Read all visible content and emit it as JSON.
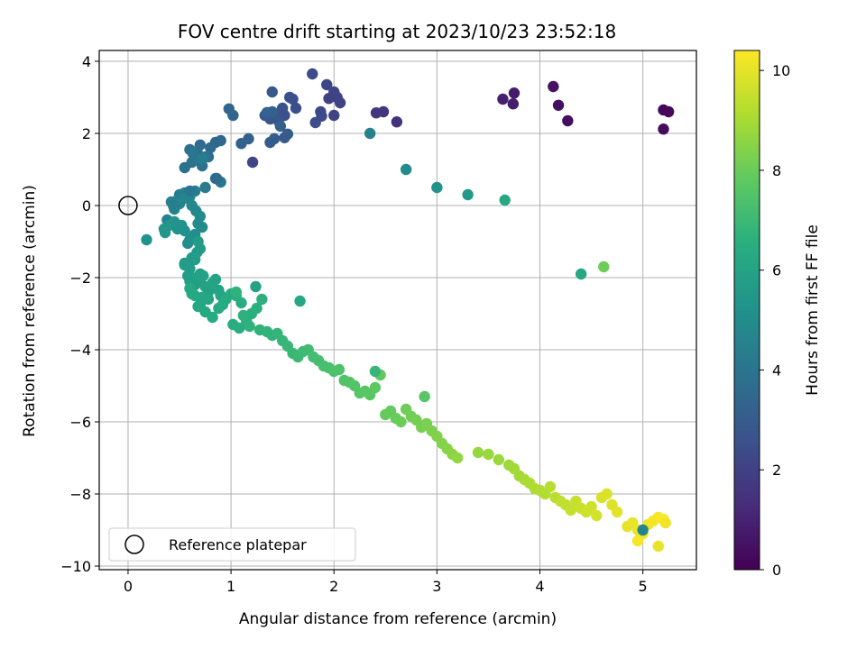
{
  "chart_data": {
    "type": "scatter",
    "title": "FOV centre drift starting at 2023/10/23 23:52:18",
    "xlabel": "Angular distance from reference (arcmin)",
    "ylabel": "Rotation from reference (arcmin)",
    "xlim": [
      -0.28,
      5.52
    ],
    "ylim": [
      -10.1,
      4.3
    ],
    "xticks": [
      0,
      1,
      2,
      3,
      4,
      5
    ],
    "yticks": [
      -10,
      -8,
      -6,
      -4,
      -2,
      0,
      2,
      4
    ],
    "grid": true,
    "colormap": "viridis",
    "colorbar": {
      "label": "Hours from first FF file",
      "range": [
        0,
        10.4
      ],
      "ticks": [
        0,
        2,
        4,
        6,
        8,
        10
      ]
    },
    "reference_point": {
      "x": 0,
      "y": 0,
      "label": "Reference platepar",
      "marker": "open-circle"
    },
    "legend": {
      "position": "lower-left",
      "entries": [
        "Reference platepar"
      ]
    },
    "series": [
      {
        "x": [
          5.2,
          5.25,
          5.2,
          4.27,
          4.18,
          4.13,
          3.75,
          3.74,
          3.64,
          2.61,
          2.48,
          2.41,
          1.95,
          2.03,
          2.06,
          2.0,
          1.93,
          1.87,
          1.88,
          1.79,
          1.82,
          1.63,
          1.6,
          1.52,
          1.57,
          1.5,
          1.43,
          1.46,
          1.38,
          1.33,
          1.4,
          1.38,
          1.52,
          1.55,
          1.42,
          1.48,
          1.4,
          1.35,
          1.17,
          1.1,
          1.02,
          0.98,
          0.9,
          0.85,
          0.8,
          0.78,
          0.7,
          0.67,
          0.6,
          0.55,
          0.62,
          0.72,
          0.75,
          0.68,
          0.63,
          0.9,
          0.85,
          0.75,
          0.65,
          0.55,
          0.5,
          0.48,
          0.42,
          0.38,
          0.45,
          0.5,
          0.55,
          0.6,
          0.62,
          0.66,
          0.7,
          0.68,
          0.72,
          0.65,
          0.6,
          0.58,
          0.55,
          0.52,
          0.48,
          0.45,
          0.4,
          0.36,
          0.35,
          0.55,
          0.62,
          0.67,
          0.7,
          0.68,
          0.65,
          0.6,
          0.55,
          0.58,
          0.6,
          0.62,
          0.65,
          0.68,
          0.7,
          0.73,
          0.75,
          0.78,
          0.8,
          0.82,
          0.85,
          0.88,
          0.9,
          0.78,
          0.72,
          0.7,
          0.68,
          0.65,
          0.62,
          0.6,
          0.75,
          0.82,
          0.88,
          0.92,
          0.95,
          1.0,
          1.05,
          1.1,
          1.02,
          1.08,
          1.15,
          1.2,
          1.25,
          1.3,
          1.12,
          1.18,
          1.05,
          1.28,
          1.35,
          1.4,
          1.45,
          1.5,
          1.55,
          1.6,
          1.65,
          1.7,
          1.75,
          1.8,
          1.85,
          1.9,
          1.95,
          2.0,
          2.05,
          2.1,
          2.15,
          2.2,
          2.25,
          2.3,
          2.35,
          2.4,
          2.45,
          2.5,
          2.55,
          2.6,
          2.65,
          2.7,
          2.75,
          2.8,
          2.85,
          2.9,
          2.95,
          3.0,
          3.05,
          3.1,
          3.15,
          3.2,
          3.4,
          3.5,
          3.6,
          3.7,
          3.75,
          3.8,
          3.85,
          3.9,
          3.95,
          4.0,
          4.05,
          4.1,
          4.15,
          4.2,
          4.25,
          4.3,
          4.35,
          4.4,
          4.45,
          4.5,
          4.55,
          4.6,
          4.65,
          4.7,
          4.75,
          4.85,
          4.9,
          4.95,
          5.0,
          5.05,
          5.1,
          5.15,
          5.2,
          5.22,
          4.95,
          5.15,
          5.0,
          0.18,
          0.44,
          0.6,
          0.72,
          0.86,
          1.21,
          2.0,
          2.35,
          2.7,
          3.0,
          3.3,
          3.66,
          4.4,
          4.62,
          2.88,
          2.4,
          1.67,
          1.24,
          0.95
        ],
        "y": [
          2.65,
          2.6,
          2.12,
          2.35,
          2.78,
          3.3,
          3.12,
          2.82,
          2.95,
          2.32,
          2.6,
          2.57,
          2.97,
          3.0,
          2.85,
          3.15,
          3.35,
          2.6,
          2.48,
          3.65,
          2.3,
          2.7,
          2.95,
          2.5,
          3.0,
          2.7,
          2.55,
          2.35,
          2.4,
          2.5,
          3.15,
          1.75,
          1.88,
          1.98,
          1.85,
          2.2,
          2.6,
          2.58,
          1.85,
          1.72,
          2.5,
          2.68,
          1.8,
          1.75,
          1.6,
          1.35,
          1.68,
          1.5,
          1.55,
          1.05,
          1.2,
          1.1,
          1.35,
          1.3,
          1.45,
          0.65,
          0.75,
          0.5,
          0.4,
          0.35,
          0.3,
          0.15,
          0.1,
          -0.4,
          -0.1,
          0.05,
          0.2,
          0.25,
          0.0,
          -0.15,
          -0.3,
          -0.5,
          -0.6,
          -0.8,
          -0.95,
          -1.05,
          -0.7,
          -0.55,
          -0.65,
          -0.45,
          -0.55,
          -0.75,
          -0.65,
          -1.6,
          -1.45,
          -1.3,
          -1.2,
          -1.0,
          -1.5,
          -1.75,
          -1.65,
          -1.95,
          -2.1,
          -2.0,
          -2.2,
          -2.05,
          -1.9,
          -1.95,
          -2.25,
          -2.4,
          -2.3,
          -2.15,
          -2.05,
          -2.35,
          -2.5,
          -2.6,
          -2.55,
          -2.75,
          -2.8,
          -2.5,
          -2.45,
          -2.3,
          -2.95,
          -3.1,
          -2.85,
          -2.75,
          -2.6,
          -2.45,
          -2.5,
          -2.7,
          -3.3,
          -3.4,
          -3.2,
          -3.0,
          -2.85,
          -2.6,
          -3.05,
          -3.35,
          -2.4,
          -3.45,
          -3.5,
          -3.6,
          -3.55,
          -3.75,
          -3.9,
          -4.1,
          -4.2,
          -4.05,
          -4.0,
          -4.2,
          -4.3,
          -4.45,
          -4.5,
          -4.6,
          -4.55,
          -4.85,
          -4.9,
          -5.0,
          -5.2,
          -5.15,
          -5.25,
          -5.05,
          -4.7,
          -5.8,
          -5.7,
          -5.9,
          -6.0,
          -5.65,
          -5.85,
          -5.95,
          -6.15,
          -6.05,
          -6.25,
          -6.4,
          -6.6,
          -6.75,
          -6.9,
          -7.0,
          -6.85,
          -6.9,
          -7.05,
          -7.2,
          -7.3,
          -7.5,
          -7.6,
          -7.7,
          -7.85,
          -7.9,
          -8.0,
          -7.8,
          -8.1,
          -8.2,
          -8.3,
          -8.45,
          -8.2,
          -8.4,
          -8.5,
          -8.35,
          -8.6,
          -8.1,
          -8.0,
          -8.3,
          -8.5,
          -8.9,
          -8.8,
          -9.0,
          -9.1,
          -8.85,
          -8.75,
          -8.65,
          -8.7,
          -8.8,
          -9.3,
          -9.45,
          -9.0,
          -0.95,
          0.0,
          0.4,
          1.3,
          0.75,
          1.2,
          2.5,
          2.0,
          1.0,
          0.5,
          0.3,
          0.15,
          -1.9,
          -1.7,
          -5.3,
          -4.6,
          -2.65,
          -2.25,
          -3.1
        ],
        "c": [
          0.2,
          0.25,
          0.3,
          0.4,
          0.45,
          0.5,
          0.8,
          0.85,
          0.9,
          1.5,
          1.6,
          1.7,
          2.0,
          2.05,
          2.1,
          2.15,
          2.2,
          2.3,
          2.35,
          2.4,
          2.45,
          2.5,
          2.55,
          2.6,
          2.62,
          2.65,
          2.7,
          2.75,
          2.8,
          2.85,
          2.9,
          2.95,
          3.0,
          3.05,
          3.1,
          3.15,
          3.2,
          3.25,
          3.3,
          3.35,
          3.4,
          3.45,
          3.5,
          3.55,
          3.6,
          3.65,
          3.7,
          3.75,
          3.8,
          3.85,
          3.9,
          3.95,
          4.0,
          4.05,
          4.1,
          4.2,
          4.25,
          4.3,
          4.35,
          4.4,
          4.45,
          4.5,
          4.55,
          4.6,
          4.65,
          4.7,
          4.75,
          4.8,
          4.85,
          4.9,
          4.95,
          5.0,
          5.05,
          5.1,
          5.15,
          5.2,
          5.25,
          5.3,
          5.35,
          5.4,
          5.45,
          5.5,
          5.55,
          5.6,
          5.62,
          5.65,
          5.68,
          5.7,
          5.72,
          5.75,
          5.78,
          5.8,
          5.82,
          5.85,
          5.88,
          5.9,
          5.92,
          5.95,
          5.98,
          6.0,
          6.02,
          6.05,
          6.08,
          6.1,
          6.12,
          6.15,
          6.18,
          6.2,
          6.22,
          6.25,
          6.28,
          6.3,
          6.32,
          6.35,
          6.38,
          6.4,
          6.42,
          6.45,
          6.48,
          6.5,
          6.52,
          6.55,
          6.58,
          6.6,
          6.62,
          6.65,
          6.68,
          6.7,
          6.72,
          6.75,
          6.78,
          6.8,
          6.85,
          6.9,
          6.95,
          7.0,
          7.05,
          7.1,
          7.15,
          7.2,
          7.25,
          7.3,
          7.35,
          7.4,
          7.45,
          7.5,
          7.55,
          7.6,
          7.65,
          7.7,
          7.75,
          7.8,
          7.85,
          7.9,
          7.95,
          8.0,
          8.05,
          8.1,
          8.15,
          8.2,
          8.25,
          8.3,
          8.35,
          8.4,
          8.45,
          8.5,
          8.6,
          8.7,
          8.75,
          8.8,
          8.85,
          8.9,
          8.95,
          9.0,
          9.05,
          9.1,
          9.15,
          9.2,
          9.25,
          9.3,
          9.35,
          9.4,
          9.45,
          9.5,
          9.55,
          9.6,
          9.65,
          9.7,
          9.75,
          9.8,
          9.85,
          9.9,
          9.95,
          10.0,
          10.05,
          10.1,
          10.15,
          10.2,
          10.25,
          10.3,
          10.35,
          10.2,
          10.3,
          10.1,
          4.8,
          5.3,
          4.5,
          4.1,
          4.3,
          3.6,
          2.2,
          2.1,
          4.6,
          5.0,
          5.3,
          5.6,
          6.3,
          6.2,
          8.1,
          7.7,
          6.9,
          6.3,
          6.0
        ]
      }
    ]
  }
}
